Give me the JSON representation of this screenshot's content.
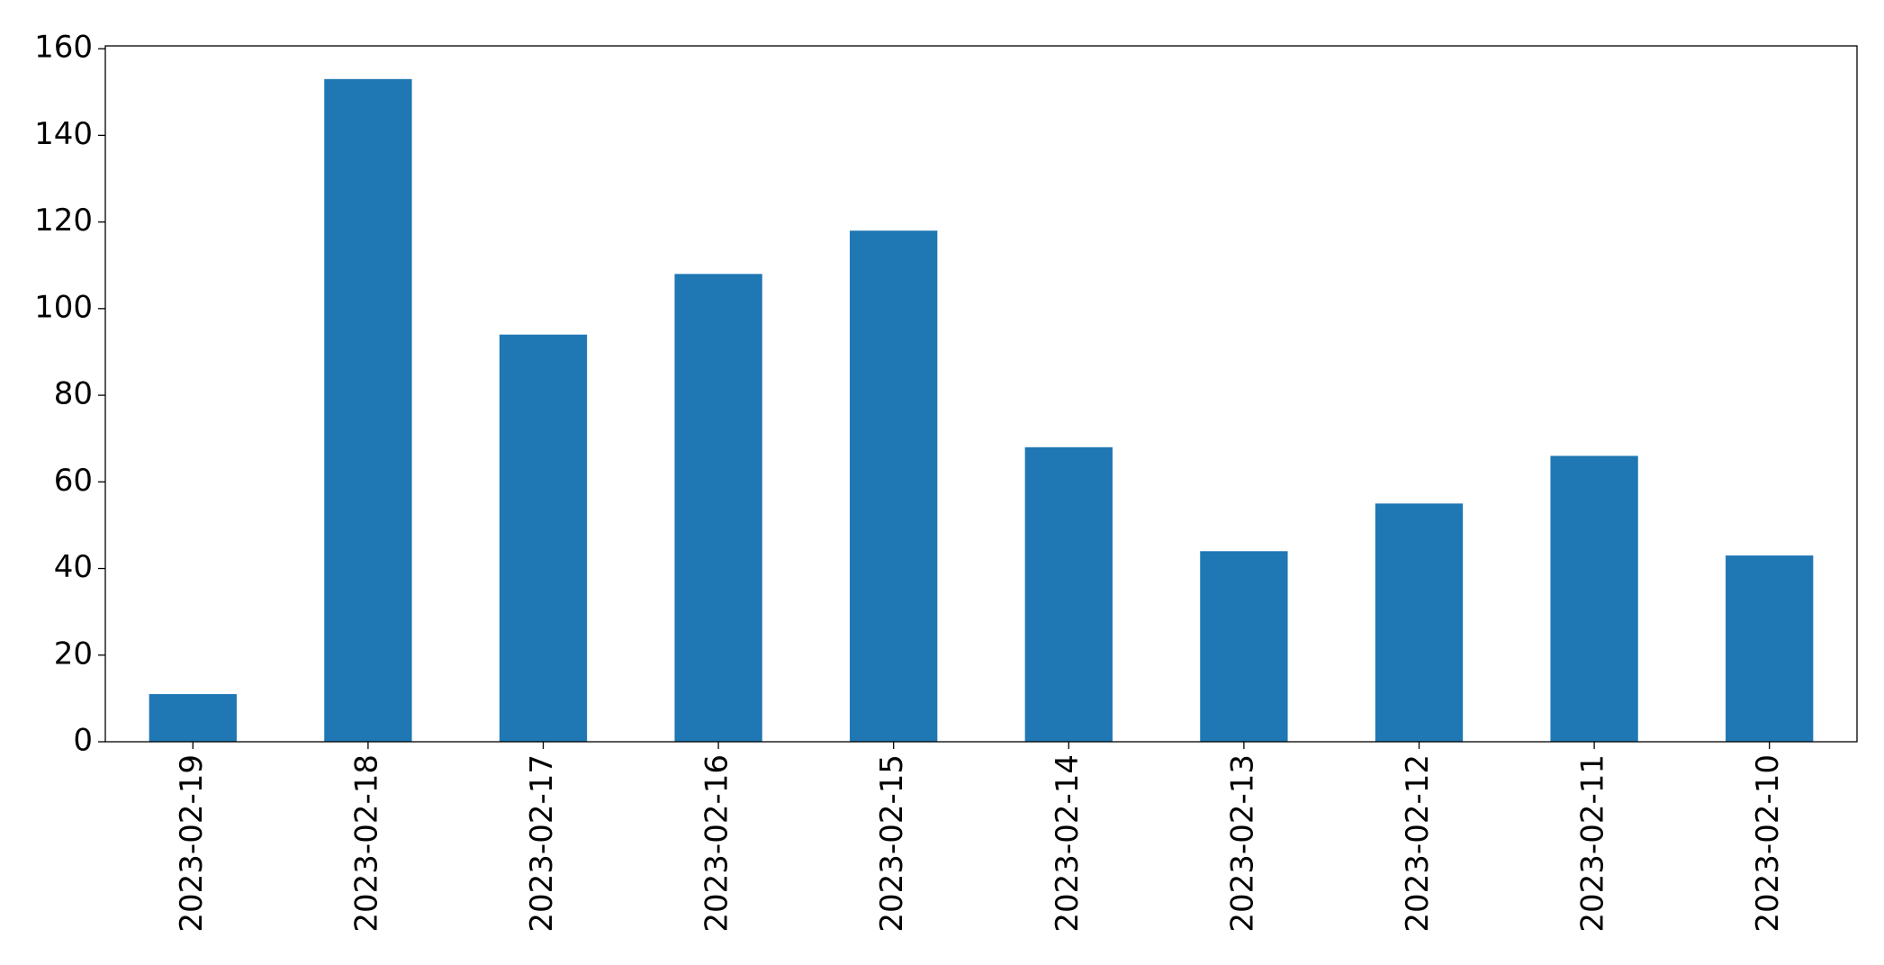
{
  "chart_data": {
    "type": "bar",
    "categories": [
      "2023-02-19",
      "2023-02-18",
      "2023-02-17",
      "2023-02-16",
      "2023-02-15",
      "2023-02-14",
      "2023-02-13",
      "2023-02-12",
      "2023-02-11",
      "2023-02-10"
    ],
    "values": [
      11,
      153,
      94,
      108,
      118,
      68,
      44,
      55,
      66,
      43
    ],
    "color": "#1f77b4",
    "ylim": [
      0,
      160.65
    ],
    "yticks": [
      0,
      20,
      40,
      60,
      80,
      100,
      120,
      140,
      160
    ],
    "grid": false
  }
}
